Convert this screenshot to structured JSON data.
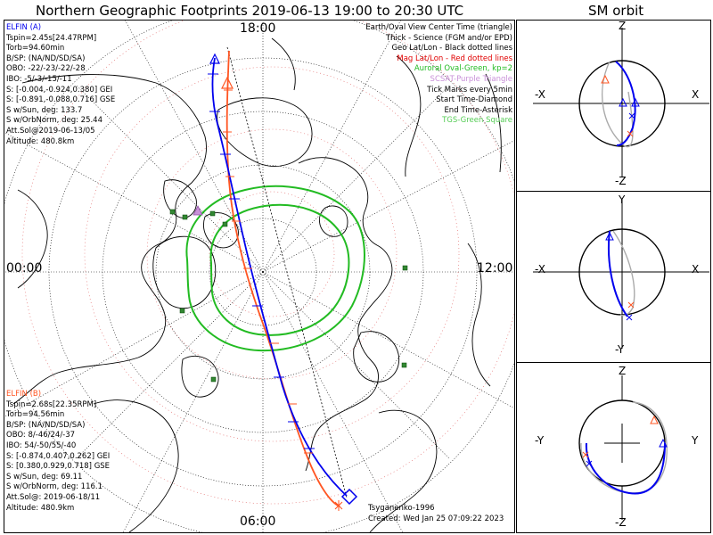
{
  "title": "Northern Geographic Footprints 2019-06-13 19:00 to 20:30 UTC",
  "sm_title": "SM orbit",
  "map": {
    "time_labels": {
      "top": "18:00",
      "left": "00:00",
      "right": "12:00",
      "bottom": "06:00"
    },
    "legend": [
      {
        "text": "Earth/Oval View Center Time (triangle)",
        "color": "#000000"
      },
      {
        "text": "Thick - Science (FGM and/or EPD)",
        "color": "#000000"
      },
      {
        "text": "Geo Lat/Lon - Black dotted lines",
        "color": "#000000"
      },
      {
        "text": "Mag Lat/Lon - Red dotted lines",
        "color": "#e00000"
      },
      {
        "text": "Auroral Oval-Green, kp=2",
        "color": "#22bb22"
      },
      {
        "text": "SCSAT-Purple Triangle",
        "color": "#c890d8"
      },
      {
        "text": "Tick Marks every 5min",
        "color": "#000000"
      },
      {
        "text": "Start Time-Diamond",
        "color": "#000000"
      },
      {
        "text": "End Time-Asterisk",
        "color": "#000000"
      },
      {
        "text": "TGS-Green Square",
        "color": "#55cc55"
      }
    ],
    "elfin_a": {
      "name": "ELFIN (A)",
      "color": "#0000ee",
      "lines": [
        "Tspin=2.45s[24.47RPM]",
        "Torb=94.60min",
        "B/SP: (NA/ND/SD/SA)",
        "OBO: -22/-23/-22/-28",
        "IBO: -5/-3/-15/-11",
        "S: [-0.004,-0.924,0.380] GEI",
        "S: [-0.891,-0.088,0.716] GSE",
        "S w/Sun, deg: 133.7",
        "S w/OrbNorm, deg: 25.44",
        "Att.Sol@2019-06-13/05",
        "Altitude: 480.8km"
      ]
    },
    "elfin_b": {
      "name": "ELFIN (B)",
      "color": "#ff5522",
      "lines": [
        "Tspin=2.68s[22.35RPM]",
        "Torb=94.56min",
        "B/SP: (NA/ND/SD/SA)",
        "OBO: 8/-46/24/-37",
        "IBO: 54/-50/55/-40",
        "S: [-0.874,0.407,0.262] GEI",
        "S: [0.380,0.929,0.718] GSE",
        "S w/Sun, deg: 69.11",
        "S w/OrbNorm, deg: 116.1",
        "Att.Sol@: 2019-06-18/11",
        "Altitude: 480.9km"
      ]
    },
    "credit": "Tsyganenko-1996",
    "created": "Created: Wed Jan 25 07:09:22 2023"
  },
  "sm_panels": [
    {
      "top": "Z",
      "bottom": "-Z",
      "left": "-X",
      "right": "X"
    },
    {
      "top": "Y",
      "bottom": "-Y",
      "left": "-X",
      "right": "X"
    },
    {
      "top": "Z",
      "bottom": "-Z",
      "left": "-Y",
      "right": "Y"
    }
  ],
  "colors": {
    "elfin_a": "#0000ee",
    "elfin_b": "#ff5522",
    "oval": "#22bb22",
    "mag_grid": "#e06060",
    "tgs": "#338833",
    "scsat": "#c890d8"
  }
}
